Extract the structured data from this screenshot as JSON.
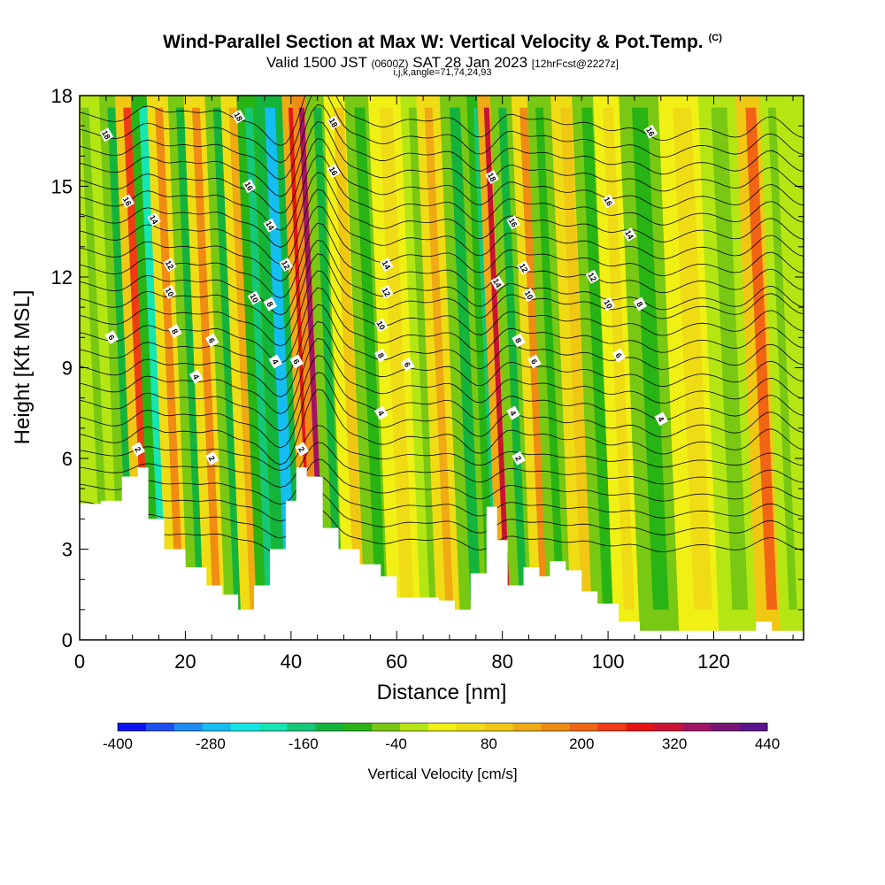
{
  "title": {
    "main": "Wind-Parallel Section at Max W: Vertical Velocity & Pot.Temp.",
    "tag": "(C)",
    "valid_prefix": "Valid 1500 JST",
    "valid_utc": "(0600Z)",
    "valid_date": "SAT 28 Jan 2023",
    "forecast_tag": "[12hrFcst@2227z]",
    "params": "i,j,k,angle=71,74,24,93"
  },
  "colorbar": {
    "title": "Vertical Velocity [cm/s]",
    "labels": [
      "-400",
      "-280",
      "-160",
      "-40",
      "80",
      "200",
      "320",
      "440"
    ],
    "colors": [
      "#0a14f0",
      "#1e50f0",
      "#1e8cf0",
      "#14bef0",
      "#14e6e6",
      "#14e6b4",
      "#14c878",
      "#14b43c",
      "#28b414",
      "#78c814",
      "#b4e614",
      "#f0f014",
      "#f0dc14",
      "#f0c814",
      "#f0aa14",
      "#f08c14",
      "#f06414",
      "#f03c14",
      "#e61414",
      "#c81432",
      "#a01464",
      "#781478",
      "#5a148c"
    ]
  },
  "chart_data": {
    "type": "heatmap",
    "title": "Wind-Parallel Section at Max W: Vertical Velocity & Pot.Temp.",
    "xlabel": "Distance [nm]",
    "ylabel": "Height [Kft MSL]",
    "xlim": [
      0,
      137
    ],
    "ylim": [
      0,
      18
    ],
    "x_ticks": [
      0,
      20,
      40,
      60,
      80,
      100,
      120
    ],
    "y_ticks": [
      0,
      3,
      6,
      9,
      12,
      15,
      18
    ],
    "colorbar_range": [
      -400,
      440
    ],
    "colorbar_units": "cm/s",
    "background_w": -20,
    "w_columns": [
      {
        "x": 5,
        "w": -60
      },
      {
        "x": 10,
        "w": -120
      },
      {
        "x": 13,
        "w": 240
      },
      {
        "x": 16,
        "w": -200
      },
      {
        "x": 19,
        "w": 160
      },
      {
        "x": 23,
        "w": -120
      },
      {
        "x": 26,
        "w": 160
      },
      {
        "x": 30,
        "w": -140
      },
      {
        "x": 33,
        "w": 120
      },
      {
        "x": 36,
        "w": -160
      },
      {
        "x": 40,
        "w": -260
      },
      {
        "x": 44,
        "w": 260
      },
      {
        "x": 46,
        "w": 340
      },
      {
        "x": 49,
        "w": -120
      },
      {
        "x": 53,
        "w": 80
      },
      {
        "x": 57,
        "w": -100
      },
      {
        "x": 62,
        "w": 60
      },
      {
        "x": 67,
        "w": -60
      },
      {
        "x": 70,
        "w": 120
      },
      {
        "x": 75,
        "w": -120
      },
      {
        "x": 79,
        "w": -160
      },
      {
        "x": 81,
        "w": 320
      },
      {
        "x": 84,
        "w": -140
      },
      {
        "x": 88,
        "w": 160
      },
      {
        "x": 91,
        "w": -80
      },
      {
        "x": 96,
        "w": 100
      },
      {
        "x": 100,
        "w": -80
      },
      {
        "x": 104,
        "w": 60
      },
      {
        "x": 110,
        "w": -100
      },
      {
        "x": 118,
        "w": 40
      },
      {
        "x": 125,
        "w": -60
      },
      {
        "x": 131,
        "w": 200
      },
      {
        "x": 135,
        "w": -60
      }
    ],
    "terrain_kft": [
      {
        "x": 0,
        "h": 4.5
      },
      {
        "x": 4,
        "h": 4.6
      },
      {
        "x": 8,
        "h": 5.4
      },
      {
        "x": 11,
        "h": 5.7
      },
      {
        "x": 13,
        "h": 4.0
      },
      {
        "x": 16,
        "h": 3.0
      },
      {
        "x": 20,
        "h": 2.4
      },
      {
        "x": 24,
        "h": 1.8
      },
      {
        "x": 27,
        "h": 1.5
      },
      {
        "x": 30,
        "h": 1.0
      },
      {
        "x": 33,
        "h": 1.8
      },
      {
        "x": 36,
        "h": 3.0
      },
      {
        "x": 39,
        "h": 4.6
      },
      {
        "x": 41,
        "h": 5.7
      },
      {
        "x": 43,
        "h": 5.4
      },
      {
        "x": 46,
        "h": 3.7
      },
      {
        "x": 49,
        "h": 3.0
      },
      {
        "x": 53,
        "h": 2.5
      },
      {
        "x": 57,
        "h": 2.1
      },
      {
        "x": 60,
        "h": 1.4
      },
      {
        "x": 64,
        "h": 1.4
      },
      {
        "x": 68,
        "h": 1.3
      },
      {
        "x": 71,
        "h": 1.0
      },
      {
        "x": 74,
        "h": 2.2
      },
      {
        "x": 77,
        "h": 4.4
      },
      {
        "x": 79,
        "h": 3.3
      },
      {
        "x": 81,
        "h": 1.8
      },
      {
        "x": 84,
        "h": 2.4
      },
      {
        "x": 87,
        "h": 2.1
      },
      {
        "x": 89,
        "h": 2.6
      },
      {
        "x": 92,
        "h": 2.3
      },
      {
        "x": 95,
        "h": 1.6
      },
      {
        "x": 98,
        "h": 1.2
      },
      {
        "x": 102,
        "h": 0.6
      },
      {
        "x": 106,
        "h": 0.3
      },
      {
        "x": 120,
        "h": 0.3
      },
      {
        "x": 126,
        "h": 0.3
      },
      {
        "x": 128,
        "h": 0.6
      },
      {
        "x": 131,
        "h": 0.3
      },
      {
        "x": 137,
        "h": 0.3
      }
    ],
    "theta_contour_labels": [
      {
        "text": "18",
        "x": 5,
        "y": 16.7
      },
      {
        "text": "16",
        "x": 9,
        "y": 14.5
      },
      {
        "text": "14",
        "x": 14,
        "y": 13.9
      },
      {
        "text": "12",
        "x": 17,
        "y": 12.4
      },
      {
        "text": "10",
        "x": 17,
        "y": 11.5
      },
      {
        "text": "8",
        "x": 18,
        "y": 10.2
      },
      {
        "text": "6",
        "x": 6,
        "y": 10.0
      },
      {
        "text": "4",
        "x": 22,
        "y": 8.7
      },
      {
        "text": "2",
        "x": 11,
        "y": 6.3
      },
      {
        "text": "18",
        "x": 30,
        "y": 17.3
      },
      {
        "text": "16",
        "x": 32,
        "y": 15.0
      },
      {
        "text": "14",
        "x": 36,
        "y": 13.7
      },
      {
        "text": "10",
        "x": 33,
        "y": 11.3
      },
      {
        "text": "8",
        "x": 36,
        "y": 11.1
      },
      {
        "text": "6",
        "x": 25,
        "y": 9.9
      },
      {
        "text": "4",
        "x": 37,
        "y": 9.2
      },
      {
        "text": "2",
        "x": 25,
        "y": 6.0
      },
      {
        "text": "12",
        "x": 39,
        "y": 12.4
      },
      {
        "text": "6",
        "x": 41,
        "y": 9.2
      },
      {
        "text": "2",
        "x": 42,
        "y": 6.3
      },
      {
        "text": "18",
        "x": 48,
        "y": 17.1
      },
      {
        "text": "16",
        "x": 48,
        "y": 15.5
      },
      {
        "text": "14",
        "x": 58,
        "y": 12.4
      },
      {
        "text": "12",
        "x": 58,
        "y": 11.5
      },
      {
        "text": "10",
        "x": 57,
        "y": 10.4
      },
      {
        "text": "8",
        "x": 57,
        "y": 9.4
      },
      {
        "text": "6",
        "x": 62,
        "y": 9.1
      },
      {
        "text": "4",
        "x": 57,
        "y": 7.5
      },
      {
        "text": "18",
        "x": 78,
        "y": 15.3
      },
      {
        "text": "16",
        "x": 82,
        "y": 13.8
      },
      {
        "text": "14",
        "x": 79,
        "y": 11.8
      },
      {
        "text": "12",
        "x": 84,
        "y": 12.3
      },
      {
        "text": "10",
        "x": 85,
        "y": 11.4
      },
      {
        "text": "8",
        "x": 83,
        "y": 9.9
      },
      {
        "text": "6",
        "x": 86,
        "y": 9.2
      },
      {
        "text": "4",
        "x": 82,
        "y": 7.5
      },
      {
        "text": "2",
        "x": 83,
        "y": 6.0
      },
      {
        "text": "16",
        "x": 108,
        "y": 16.8
      },
      {
        "text": "16",
        "x": 100,
        "y": 14.5
      },
      {
        "text": "14",
        "x": 104,
        "y": 13.4
      },
      {
        "text": "12",
        "x": 97,
        "y": 12.0
      },
      {
        "text": "10",
        "x": 100,
        "y": 11.1
      },
      {
        "text": "8",
        "x": 106,
        "y": 11.1
      },
      {
        "text": "6",
        "x": 102,
        "y": 9.4
      },
      {
        "text": "4",
        "x": 110,
        "y": 7.3
      }
    ]
  }
}
